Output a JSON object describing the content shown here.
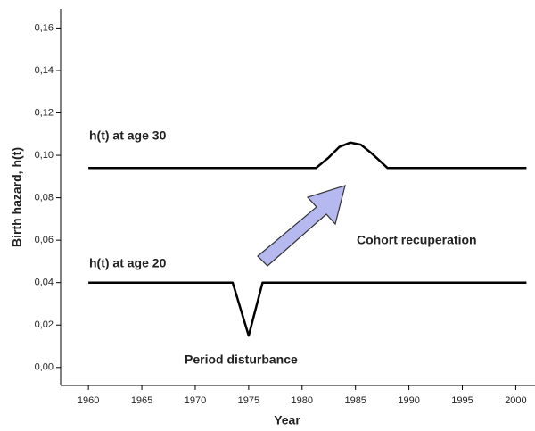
{
  "chart_data": {
    "type": "line",
    "x_label": "Year",
    "y_label": "Birth hazard, h(t)",
    "x": [
      1960,
      1973.5,
      1975,
      1976.3,
      1981.3,
      1982.5,
      1983.5,
      1984.5,
      1985.5,
      1986.5,
      1988,
      2001
    ],
    "series": [
      {
        "name": "h(t) at age 30",
        "color": "#000000",
        "values": [
          0.094,
          0.094,
          0.094,
          0.094,
          0.094,
          0.099,
          0.104,
          0.106,
          0.105,
          0.101,
          0.094,
          0.094
        ]
      },
      {
        "name": "h(t) at age 20",
        "color": "#000000",
        "values": [
          0.04,
          0.04,
          0.015,
          0.04,
          0.04,
          0.04,
          0.04,
          0.04,
          0.04,
          0.04,
          0.04,
          0.04
        ]
      }
    ],
    "annotations": [
      "Cohort recuperation",
      "Period disturbance"
    ],
    "xlim": [
      1957.4,
      2001.8
    ],
    "xticks": [
      1960,
      1965,
      1970,
      1975,
      1980,
      1985,
      1990,
      1995,
      2000
    ],
    "ylim": [
      -0.0085,
      0.169
    ],
    "yticks": [
      {
        "value": 0,
        "label": "0,00"
      },
      {
        "value": 0.02,
        "label": "0,02"
      },
      {
        "value": 0.04,
        "label": "0,04"
      },
      {
        "value": 0.06,
        "label": "0,06"
      },
      {
        "value": 0.08,
        "label": "0,08"
      },
      {
        "value": 0.1,
        "label": "0,10"
      },
      {
        "value": 0.12,
        "label": "0,12"
      },
      {
        "value": 0.14,
        "label": "0,14"
      },
      {
        "value": 0.16,
        "label": "0,16"
      }
    ],
    "grid": false
  }
}
